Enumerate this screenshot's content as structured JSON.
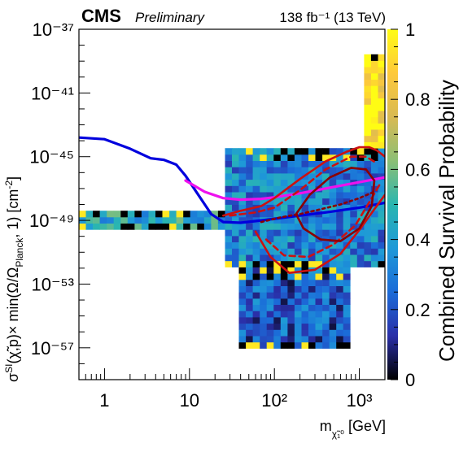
{
  "header": {
    "experiment": "CMS",
    "status": "Preliminary",
    "luminosity": "138 fb⁻¹ (13 TeV)"
  },
  "chart_data": {
    "type": "heatmap",
    "x_scale": "log",
    "y_scale": "log",
    "xlim": [
      0.5,
      2000
    ],
    "ylim": [
      1e-59,
      1e-37
    ],
    "xlabel": "m_{χ̃₁⁰} [GeV]",
    "ylabel": "σ^{SI}(χ̃,p)× min(Ω/Ω_{Planck}, 1) [cm^{-2}]",
    "x_tick_labels": [
      "1",
      "10",
      "10²",
      "10³"
    ],
    "x_ticks": [
      1,
      10,
      100,
      1000
    ],
    "y_tick_labels": [
      "10⁻⁵⁷",
      "10⁻⁵³",
      "10⁻⁴⁹",
      "10⁻⁴⁵",
      "10⁻⁴¹",
      "10⁻³⁷"
    ],
    "y_ticks": [
      -57,
      -53,
      -49,
      -45,
      -41,
      -37
    ],
    "colorbar": {
      "title": "Combined Survival Probability",
      "range": [
        0,
        1
      ],
      "tick_labels": [
        "0",
        "0.2",
        "0.4",
        "0.6",
        "0.8",
        "1"
      ],
      "ticks": [
        0,
        0.2,
        0.4,
        0.6,
        0.8,
        1
      ],
      "colors": [
        "#000000",
        "#2a2fa8",
        "#1b6bd8",
        "#1e99d8",
        "#2ab6b0",
        "#8cbf75",
        "#d9ba52",
        "#fec93a",
        "#fffc14"
      ]
    },
    "density_regions": [
      {
        "desc": "low-mass band",
        "x": [
          0.5,
          25
        ],
        "log10y": [
          -49.6,
          -48.3
        ],
        "prob": 0.45
      },
      {
        "desc": "main body",
        "x": [
          25,
          2000
        ],
        "log10y": [
          -52,
          -44.5
        ],
        "prob": 0.32
      },
      {
        "desc": "lower funnel",
        "x": [
          40,
          800
        ],
        "log10y": [
          -57.2,
          -52
        ],
        "prob": 0.22
      },
      {
        "desc": "high-mass yellow edge",
        "x": [
          1100,
          2000
        ],
        "log10y": [
          -48,
          -38.5
        ],
        "prob": 0.95
      }
    ],
    "series": [
      {
        "color": "#0000dd",
        "style": "solid",
        "x": [
          0.5,
          1.0,
          2.0,
          3.5,
          5.0,
          7.0,
          9.0,
          12.0,
          18.0,
          25.0,
          40.0,
          70.0,
          100.0,
          200.0,
          400.0,
          1000.0,
          2000.0
        ],
        "log10y": [
          -43.8,
          -43.9,
          -44.5,
          -45.1,
          -45.2,
          -45.5,
          -46.2,
          -47.2,
          -48.6,
          -49.1,
          -49.15,
          -49.0,
          -48.9,
          -48.7,
          -48.5,
          -48.2,
          -47.9
        ]
      },
      {
        "color": "#ee11ee",
        "style": "solid",
        "x": [
          9.0,
          15.0,
          25.0,
          40.0,
          70.0,
          100.0,
          200.0,
          500.0,
          1000.0,
          2000.0
        ],
        "log10y": [
          -46.5,
          -47.2,
          -47.6,
          -47.7,
          -47.65,
          -47.55,
          -47.3,
          -46.9,
          -46.6,
          -46.3
        ]
      },
      {
        "color": "#cc1111",
        "style": "solid",
        "x": [
          25.0,
          40.0,
          70.0,
          100.0,
          200.0,
          400.0,
          700.0,
          1000.0,
          1300.0,
          1600.0,
          2000.0
        ],
        "log10y": [
          -48.7,
          -48.4,
          -48.1,
          -47.6,
          -46.4,
          -45.3,
          -44.7,
          -44.4,
          -44.4,
          -44.6,
          -45.0
        ]
      },
      {
        "color": "#cc1111",
        "style": "solid",
        "x": [
          60.0,
          90.0,
          150.0,
          300.0,
          600.0,
          1000.0,
          1500.0,
          2000.0
        ],
        "log10y": [
          -49.7,
          -51.3,
          -52.3,
          -52.1,
          -51.1,
          -49.6,
          -48.3,
          -47.4
        ]
      },
      {
        "color": "#cc1111",
        "style": "dashed",
        "x": [
          30.0,
          60.0,
          100.0,
          200.0,
          400.0,
          800.0,
          1200.0,
          1600.0
        ],
        "log10y": [
          -48.7,
          -48.5,
          -48.2,
          -47.1,
          -45.8,
          -45.0,
          -45.0,
          -45.4
        ]
      },
      {
        "color": "#cc1111",
        "style": "dashed",
        "x": [
          80.0,
          130.0,
          250.0,
          500.0,
          900.0,
          1400.0,
          1800.0
        ],
        "log10y": [
          -50.2,
          -51.2,
          -51.3,
          -50.5,
          -49.3,
          -47.6,
          -46.6
        ]
      },
      {
        "color": "#8b0000",
        "style": "solid",
        "closed": true,
        "x": [
          180.0,
          260.0,
          450.0,
          800.0,
          1200.0,
          1500.0,
          1400.0,
          1000.0,
          600.0,
          350.0,
          220.0,
          180.0
        ],
        "log10y": [
          -48.6,
          -47.4,
          -46.3,
          -45.7,
          -45.8,
          -46.5,
          -48.1,
          -49.5,
          -50.3,
          -50.2,
          -49.5,
          -48.6
        ]
      },
      {
        "color": "#8b0000",
        "style": "dotted",
        "x": [
          70.0,
          120.0,
          200.0,
          350.0,
          600.0,
          1000.0,
          1500.0
        ],
        "log10y": [
          -49.1,
          -48.8,
          -48.6,
          -48.3,
          -48.0,
          -47.6,
          -47.2
        ]
      }
    ]
  }
}
